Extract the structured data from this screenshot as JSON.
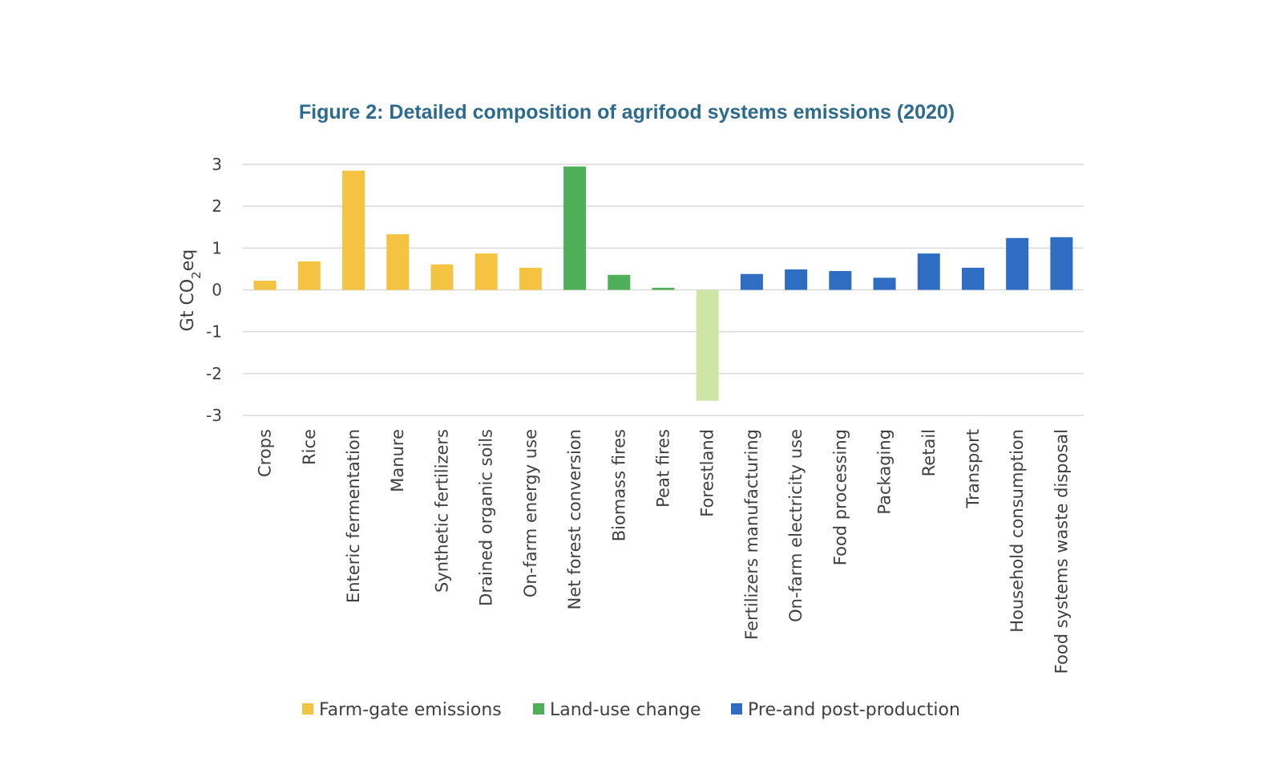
{
  "chart_data": {
    "type": "bar",
    "title": "Figure 2: Detailed composition of agrifood systems emissions (2020)",
    "ylabel": {
      "prefix": "Gt CO",
      "subscript": "2",
      "suffix": "eq"
    },
    "ylim": [
      -3,
      3
    ],
    "yticks": [
      3,
      2,
      1,
      0,
      -1,
      -2,
      -3
    ],
    "grid": true,
    "legend_position": "bottom",
    "categories": [
      "Crops",
      "Rice",
      "Enteric fermentation",
      "Manure",
      "Synthetic fertilizers",
      "Drained organic soils",
      "On-farm energy use",
      "Net forest conversion",
      "Biomass fires",
      "Peat fires",
      "Forestland",
      "Fertilizers manufacturing",
      "On-farm electricity use",
      "Food processing",
      "Packaging",
      "Retail",
      "Transport",
      "Household consumption",
      "Food systems waste disposal"
    ],
    "values": [
      0.22,
      0.68,
      2.85,
      1.33,
      0.61,
      0.87,
      0.53,
      2.95,
      0.36,
      0.05,
      -2.65,
      0.38,
      0.49,
      0.45,
      0.29,
      0.87,
      0.53,
      1.24,
      1.26
    ],
    "bar_groups": [
      0,
      0,
      0,
      0,
      0,
      0,
      0,
      1,
      1,
      1,
      2,
      3,
      3,
      3,
      3,
      3,
      3,
      3,
      3
    ],
    "group_colors": [
      "#F5C342",
      "#4FAE58",
      "#CDE6A6",
      "#2F6DC2"
    ],
    "legend": [
      {
        "label": "Farm-gate emissions",
        "color": "#F5C342"
      },
      {
        "label": "Land-use change",
        "color": "#4FAE58"
      },
      {
        "label": "Pre-and post-production",
        "color": "#2F6DC2"
      }
    ],
    "colors": {
      "title": "#2C6A8E",
      "grid": "#D9D9D9",
      "text": "#404040"
    }
  }
}
